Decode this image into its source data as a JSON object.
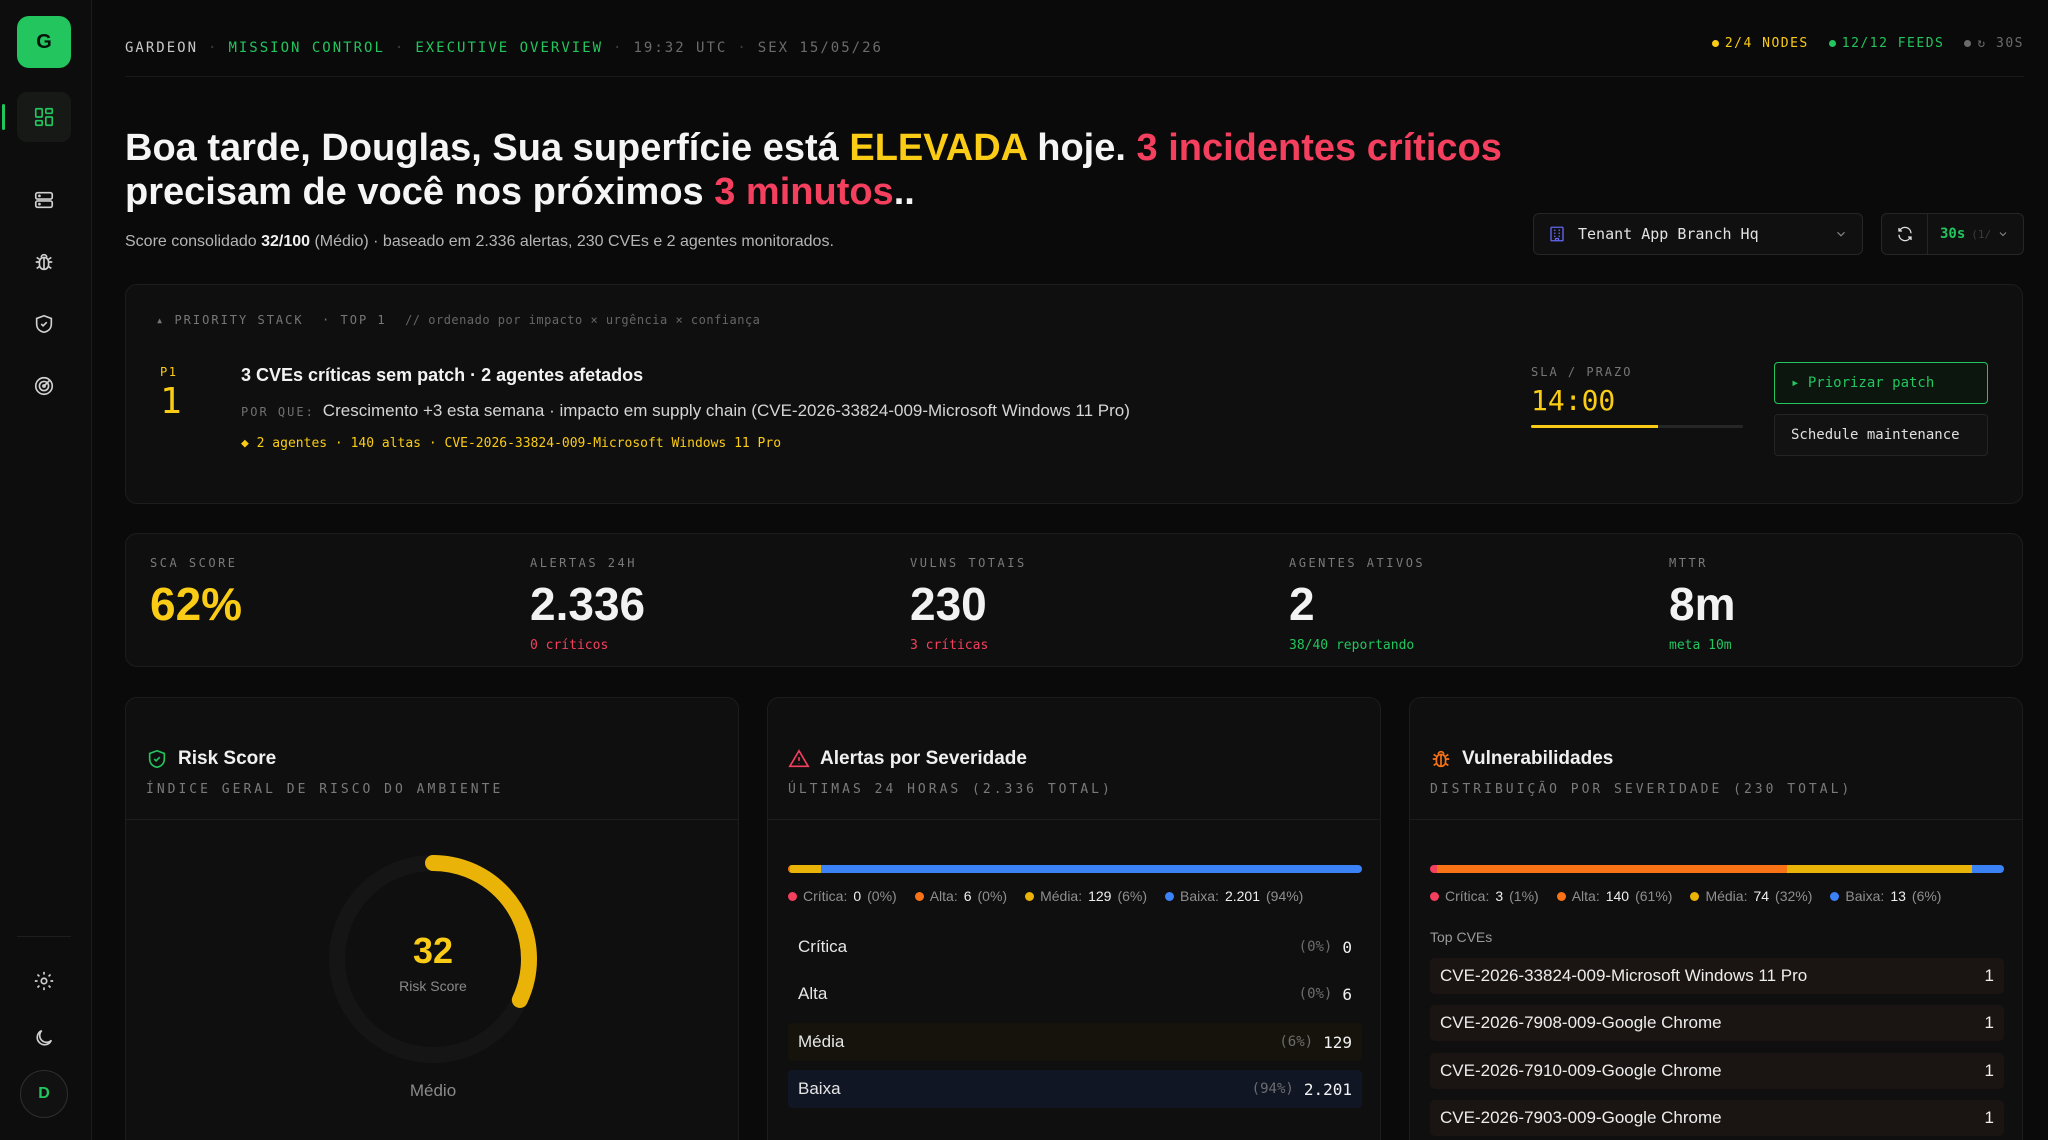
{
  "sidebar": {
    "logo_letter": "G",
    "avatar_letter": "D",
    "nav": [
      "dashboard-icon",
      "server-icon",
      "bug-icon",
      "shield-check-icon",
      "radar-icon"
    ],
    "bottom": [
      "gear-icon",
      "moon-icon"
    ]
  },
  "topbar": {
    "brand": "GARDEON",
    "section": "MISSION CONTROL",
    "page": "EXECUTIVE OVERVIEW",
    "time": "19:32 UTC",
    "date": "SEX 15/05/26",
    "nodes": "2/4 NODES",
    "feeds": "12/12 FEEDS",
    "refresh": "↻ 30S",
    "colors": {
      "nodes": "#facc15",
      "feeds": "#22c55e",
      "refresh": "#6b6b6b"
    }
  },
  "headline": {
    "p1": "Boa tarde, Douglas, Sua superfície está ",
    "level": "ELEVADA",
    "p2": " hoje. ",
    "incidents": "3 incidentes críticos",
    "p3": " precisam de você nos próximos ",
    "minutes": "3 minutos",
    "p4": ".."
  },
  "subline": {
    "p1": "Score consolidado ",
    "score": "32/100",
    "p2": " (Médio) · baseado em 2.336 alertas, 230 CVEs e 2 agentes monitorados."
  },
  "tenant": {
    "label": "Tenant App Branch Hq",
    "icon": "building-icon"
  },
  "refresh_control": {
    "interval": "30s",
    "ghost": "(1/"
  },
  "priority": {
    "header_label": "▴ PRIORITY STACK",
    "header_top": "· TOP 1",
    "header_comment": "// ordenado por impacto × urgência × confiança",
    "rank_label": "P1",
    "rank": "1",
    "title": "3 CVEs críticas sem patch · 2 agentes afetados",
    "why_label": "POR QUE:",
    "why": "Crescimento +3 esta semana · impacto em supply chain (CVE-2026-33824-009-Microsoft Windows 11 Pro)",
    "tags": "◆ 2 agentes · 140 altas · CVE-2026-33824-009-Microsoft Windows 11 Pro",
    "sla_label": "SLA / PRAZO",
    "sla_value": "14:00",
    "sla_progress": 0.6,
    "primary_action": "▸ Priorizar patch",
    "secondary_action": "Schedule maintenance"
  },
  "kpis": [
    {
      "label": "SCA SCORE",
      "value": "62%",
      "sub": "",
      "value_color": "#facc15",
      "sub_color": "#888888"
    },
    {
      "label": "ALERTAS 24H",
      "value": "2.336",
      "sub": "0 críticos",
      "value_color": "#f2f2f2",
      "sub_color": "#f43f5e"
    },
    {
      "label": "VULNS TOTAIS",
      "value": "230",
      "sub": "3 críticas",
      "value_color": "#f2f2f2",
      "sub_color": "#f43f5e"
    },
    {
      "label": "AGENTES ATIVOS",
      "value": "2",
      "sub": "38/40 reportando",
      "value_color": "#f2f2f2",
      "sub_color": "#22c55e"
    },
    {
      "label": "MTTR",
      "value": "8m",
      "sub": "meta 10m",
      "value_color": "#f2f2f2",
      "sub_color": "#22c55e"
    }
  ],
  "risk": {
    "title": "Risk Score",
    "subtitle": "ÍNDICE GERAL DE RISCO DO AMBIENTE",
    "score": "32",
    "score_label": "Risk Score",
    "level": "Médio",
    "fraction": 0.32,
    "color": "#eab308"
  },
  "alerts": {
    "title": "Alertas por Severidade",
    "subtitle": "ÚLTIMAS 24 HORAS (2.336 TOTAL)",
    "legend": [
      {
        "name": "Crítica:",
        "count": "0",
        "pct": "(0%)",
        "color": "#f43f5e"
      },
      {
        "name": "Alta:",
        "count": "6",
        "pct": "(0%)",
        "color": "#f97316"
      },
      {
        "name": "Média:",
        "count": "129",
        "pct": "(6%)",
        "color": "#eab308"
      },
      {
        "name": "Baixa:",
        "count": "2.201",
        "pct": "(94%)",
        "color": "#3b82f6"
      }
    ],
    "bar_fractions": [
      0.0,
      0.003,
      0.055,
      0.942
    ],
    "rows": [
      {
        "name": "Crítica",
        "pct": "(0%)",
        "count": "0",
        "bg": "transparent"
      },
      {
        "name": "Alta",
        "pct": "(0%)",
        "count": "6",
        "bg": "transparent"
      },
      {
        "name": "Média",
        "pct": "(6%)",
        "count": "129",
        "bg": "#15130b"
      },
      {
        "name": "Baixa",
        "pct": "(94%)",
        "count": "2.201",
        "bg": "#101624"
      }
    ]
  },
  "vulns": {
    "title": "Vulnerabilidades",
    "subtitle": "DISTRIBUIÇÃO POR SEVERIDADE (230 TOTAL)",
    "legend": [
      {
        "name": "Crítica:",
        "count": "3",
        "pct": "(1%)",
        "color": "#f43f5e"
      },
      {
        "name": "Alta:",
        "count": "140",
        "pct": "(61%)",
        "color": "#f97316"
      },
      {
        "name": "Média:",
        "count": "74",
        "pct": "(32%)",
        "color": "#eab308"
      },
      {
        "name": "Baixa:",
        "count": "13",
        "pct": "(6%)",
        "color": "#3b82f6"
      }
    ],
    "bar_fractions": [
      0.013,
      0.609,
      0.322,
      0.056
    ],
    "top_label": "Top CVEs",
    "top": [
      {
        "cve": "CVE-2026-33824-009-Microsoft Windows 11 Pro",
        "count": "1"
      },
      {
        "cve": "CVE-2026-7908-009-Google Chrome",
        "count": "1"
      },
      {
        "cve": "CVE-2026-7910-009-Google Chrome",
        "count": "1"
      },
      {
        "cve": "CVE-2026-7903-009-Google Chrome",
        "count": "1"
      }
    ]
  }
}
